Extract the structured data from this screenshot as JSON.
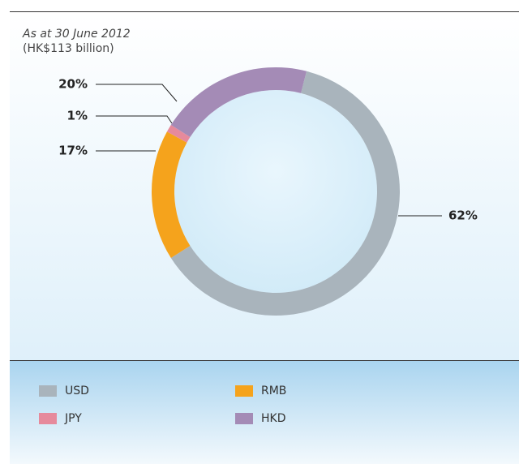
{
  "chart_data": {
    "type": "donut",
    "title": "As at 30 June 2012",
    "subtitle": "(HK$113 billion)",
    "categories": [
      "USD",
      "RMB",
      "JPY",
      "HKD"
    ],
    "values": [
      62,
      17,
      1,
      20
    ],
    "value_labels": [
      "62%",
      "17%",
      "1%",
      "20%"
    ],
    "colors": [
      "#a9b4bc",
      "#f5a31c",
      "#e68a9c",
      "#a48bb6"
    ]
  }
}
